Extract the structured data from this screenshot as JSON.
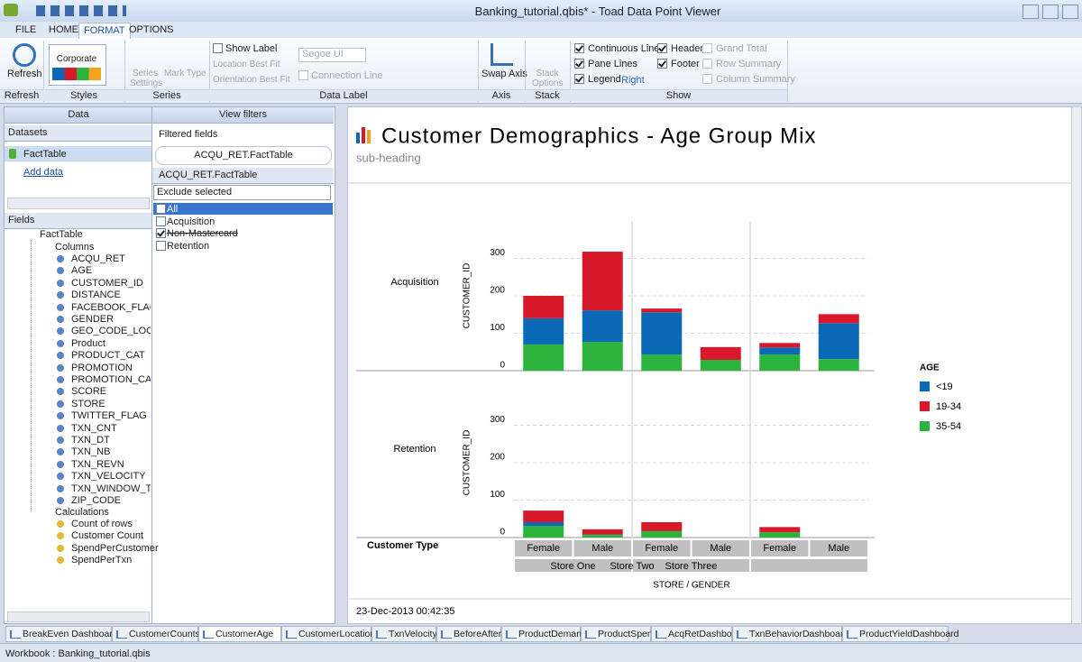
{
  "window": {
    "title": "Banking_tutorial.qbis* - Toad Data Point Viewer"
  },
  "ribbon": {
    "tabs": [
      "FILE",
      "HOME",
      "FORMAT",
      "OPTIONS"
    ],
    "active_tab": 2,
    "refresh": "Refresh",
    "style_name": "Corporate",
    "series_settings": "Series Settings",
    "mark_type": "Mark Type",
    "show_label": "Show Label",
    "location": "Location Best Fit",
    "orientation": "Orientation Best Fit",
    "font": "Segoe UI",
    "connection_line": "Connection Line",
    "swap_axis": "Swap Axis",
    "stack_options": "Stack Options",
    "legend_position": "Right",
    "show_options": [
      {
        "label": "Continuous Lines",
        "checked": true,
        "enabled": true
      },
      {
        "label": "Pane Lines",
        "checked": true,
        "enabled": true
      },
      {
        "label": "Legend",
        "checked": true,
        "enabled": true
      },
      {
        "label": "Header",
        "checked": true,
        "enabled": true
      },
      {
        "label": "Footer",
        "checked": true,
        "enabled": true
      },
      {
        "label": "Grand Total",
        "checked": false,
        "enabled": false
      },
      {
        "label": "Row Summary",
        "checked": false,
        "enabled": false
      },
      {
        "label": "Column Summary",
        "checked": false,
        "enabled": false
      }
    ],
    "groups": [
      "Refresh",
      "Styles",
      "Series",
      "Data Label",
      "Axis",
      "Stack",
      "Show"
    ]
  },
  "data_panel": {
    "title": "Data",
    "datasets": "Datasets",
    "dataset": "FactTable",
    "add_data": "Add data",
    "fields": "Fields",
    "table": "FactTable",
    "columns_label": "Columns",
    "columns": [
      "ACQU_RET",
      "AGE",
      "CUSTOMER_ID",
      "DISTANCE",
      "FACEBOOK_FLAG",
      "GENDER",
      "GEO_CODE_LOCAT",
      "Product",
      "PRODUCT_CAT",
      "PROMOTION",
      "PROMOTION_CAT",
      "SCORE",
      "STORE",
      "TWITTER_FLAG",
      "TXN_CNT",
      "TXN_DT",
      "TXN_NB",
      "TXN_REVN",
      "TXN_VELOCITY",
      "TXN_WINDOW_TXI",
      "ZIP_CODE"
    ],
    "calculations_label": "Calculations",
    "calculations": [
      "Count of rows",
      "Customer Count",
      "SpendPerCustomer",
      "SpendPerTxn"
    ]
  },
  "filters_panel": {
    "title": "View filters",
    "filtered_fields": "Filtered fields",
    "field": "ACQU_RET.FactTable",
    "filter_name": "ACQU_RET.FactTable",
    "mode": "Exclude selected",
    "items": [
      {
        "label": "All",
        "checked": false
      },
      {
        "label": "Acquisition",
        "checked": false
      },
      {
        "label": "Non-Mastercard",
        "checked": true
      },
      {
        "label": "Retention",
        "checked": false
      }
    ]
  },
  "chart_data": {
    "type": "bar",
    "stacked": true,
    "title": "Customer Demographics - Age Group Mix",
    "subtitle": "sub-heading",
    "y_label": "CUSTOMER_ID",
    "row_field": "Customer Type",
    "x_label": "STORE  /  GENDER",
    "legend_title": "AGE",
    "legend": "right",
    "stores": [
      "Store One",
      "Store Two",
      "Store Three"
    ],
    "categories": [
      "Female",
      "Male",
      "Female",
      "Male",
      "Female",
      "Male"
    ],
    "ylim": [
      0,
      400
    ],
    "yticks": [
      0,
      100,
      200,
      300
    ],
    "grid": true,
    "series": [
      {
        "name": "<19",
        "color": "#0b69b5"
      },
      {
        "name": "19-34",
        "color": "#d8192c"
      },
      {
        "name": "35-54",
        "color": "#2bb33d"
      }
    ],
    "panels": [
      {
        "name": "Acquisition",
        "values": [
          [
            70,
            84,
            113,
            0,
            19,
            96
          ],
          [
            60,
            157,
            10,
            34,
            12,
            24
          ],
          [
            70,
            77,
            43,
            29,
            43,
            31
          ]
        ]
      },
      {
        "name": "Retention",
        "values": [
          [
            10,
            1,
            0,
            0,
            0,
            0
          ],
          [
            31,
            14,
            24,
            0,
            14,
            0
          ],
          [
            31,
            7,
            17,
            0,
            14,
            0
          ]
        ]
      }
    ],
    "footer": "23-Dec-2013 00:42:35"
  },
  "tabs": {
    "items": [
      "BreakEven Dashboard",
      "CustomerCounts",
      "CustomerAge",
      "CustomerLocation",
      "TxnVelocity",
      "BeforeAfter",
      "ProductDemand",
      "ProductSpend",
      "AcqRetDashboard",
      "TxnBehaviorDashboard",
      "ProductYieldDashboard"
    ],
    "active": 2
  },
  "status": "Workbook : Banking_tutorial.qbis"
}
